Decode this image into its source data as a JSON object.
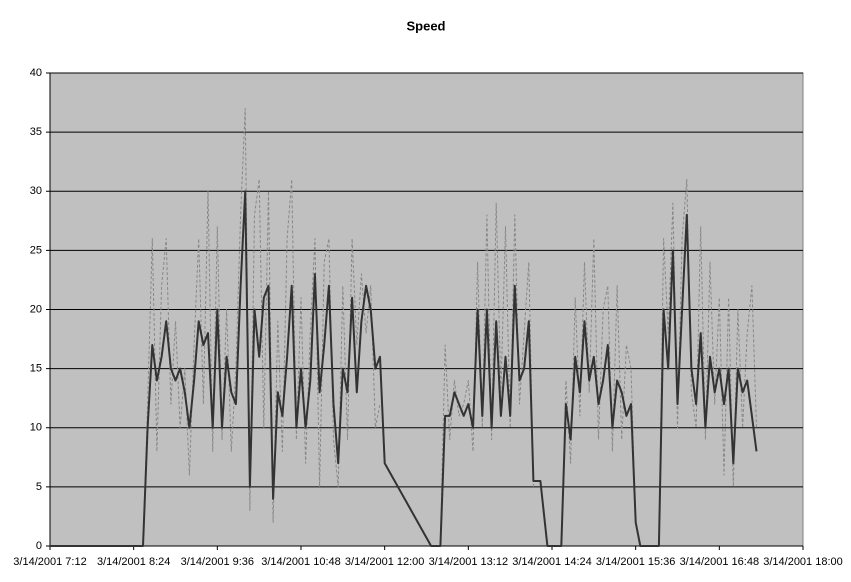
{
  "chart_data": {
    "type": "line",
    "title": "Speed",
    "x": [
      "3/14/2001 7:12",
      "3/14/2001 8:00",
      "3/14/2001 8:32",
      "3/14/2001 8:36",
      "3/14/2001 8:40",
      "3/14/2001 8:44",
      "3/14/2001 8:48",
      "3/14/2001 8:52",
      "3/14/2001 8:56",
      "3/14/2001 9:00",
      "3/14/2001 9:04",
      "3/14/2001 9:08",
      "3/14/2001 9:12",
      "3/14/2001 9:16",
      "3/14/2001 9:20",
      "3/14/2001 9:24",
      "3/14/2001 9:28",
      "3/14/2001 9:32",
      "3/14/2001 9:36",
      "3/14/2001 9:40",
      "3/14/2001 9:44",
      "3/14/2001 9:48",
      "3/14/2001 9:52",
      "3/14/2001 9:56",
      "3/14/2001 10:00",
      "3/14/2001 10:04",
      "3/14/2001 10:08",
      "3/14/2001 10:12",
      "3/14/2001 10:16",
      "3/14/2001 10:20",
      "3/14/2001 10:24",
      "3/14/2001 10:28",
      "3/14/2001 10:32",
      "3/14/2001 10:36",
      "3/14/2001 10:40",
      "3/14/2001 10:44",
      "3/14/2001 10:48",
      "3/14/2001 10:52",
      "3/14/2001 10:56",
      "3/14/2001 11:00",
      "3/14/2001 11:04",
      "3/14/2001 11:08",
      "3/14/2001 11:12",
      "3/14/2001 11:16",
      "3/14/2001 11:20",
      "3/14/2001 11:24",
      "3/14/2001 11:28",
      "3/14/2001 11:32",
      "3/14/2001 11:36",
      "3/14/2001 11:40",
      "3/14/2001 11:44",
      "3/14/2001 11:48",
      "3/14/2001 11:52",
      "3/14/2001 11:56",
      "3/14/2001 12:00",
      "3/14/2001 12:40",
      "3/14/2001 12:48",
      "3/14/2001 12:52",
      "3/14/2001 12:56",
      "3/14/2001 13:00",
      "3/14/2001 13:04",
      "3/14/2001 13:08",
      "3/14/2001 13:12",
      "3/14/2001 13:16",
      "3/14/2001 13:20",
      "3/14/2001 13:24",
      "3/14/2001 13:28",
      "3/14/2001 13:32",
      "3/14/2001 13:36",
      "3/14/2001 13:40",
      "3/14/2001 13:44",
      "3/14/2001 13:48",
      "3/14/2001 13:52",
      "3/14/2001 13:56",
      "3/14/2001 14:00",
      "3/14/2001 14:04",
      "3/14/2001 14:08",
      "3/14/2001 14:14",
      "3/14/2001 14:20",
      "3/14/2001 14:32",
      "3/14/2001 14:36",
      "3/14/2001 14:40",
      "3/14/2001 14:44",
      "3/14/2001 14:48",
      "3/14/2001 14:52",
      "3/14/2001 14:56",
      "3/14/2001 15:00",
      "3/14/2001 15:04",
      "3/14/2001 15:08",
      "3/14/2001 15:12",
      "3/14/2001 15:16",
      "3/14/2001 15:20",
      "3/14/2001 15:24",
      "3/14/2001 15:28",
      "3/14/2001 15:32",
      "3/14/2001 15:36",
      "3/14/2001 15:40",
      "3/14/2001 15:56",
      "3/14/2001 16:00",
      "3/14/2001 16:04",
      "3/14/2001 16:08",
      "3/14/2001 16:12",
      "3/14/2001 16:16",
      "3/14/2001 16:20",
      "3/14/2001 16:24",
      "3/14/2001 16:28",
      "3/14/2001 16:32",
      "3/14/2001 16:36",
      "3/14/2001 16:40",
      "3/14/2001 16:44",
      "3/14/2001 16:48",
      "3/14/2001 16:52",
      "3/14/2001 16:56",
      "3/14/2001 17:00",
      "3/14/2001 17:04",
      "3/14/2001 17:08",
      "3/14/2001 17:12",
      "3/14/2001 17:16",
      "3/14/2001 17:20"
    ],
    "series": [
      {
        "color": "#888888",
        "dashed": true,
        "values": [
          0,
          0,
          0,
          12,
          26,
          8,
          22,
          26,
          12,
          19,
          10,
          15,
          6,
          17,
          26,
          12,
          30,
          8,
          27,
          9,
          20,
          8,
          15,
          28,
          37,
          3,
          28,
          31,
          10,
          30,
          2,
          19,
          8,
          26,
          31,
          9,
          21,
          7,
          18,
          26,
          5,
          24,
          26,
          9,
          5,
          22,
          9,
          26,
          17,
          23,
          18,
          22,
          10,
          12,
          null,
          null,
          0,
          17,
          9,
          14,
          11,
          12,
          14,
          8,
          24,
          10,
          28,
          9,
          29,
          13,
          27,
          10,
          28,
          12,
          18,
          24,
          5,
          null,
          0,
          0,
          14,
          7,
          21,
          11,
          24,
          13,
          26,
          9,
          20,
          22,
          8,
          22,
          9,
          17,
          15,
          2,
          0,
          0,
          26,
          18,
          29,
          10,
          26,
          31,
          13,
          10,
          27,
          9,
          24,
          12,
          21,
          6,
          21,
          5,
          20,
          10,
          18,
          22,
          10
        ]
      },
      {
        "color": "#333333",
        "dashed": false,
        "values": [
          0,
          0,
          0,
          10,
          17,
          14,
          16,
          19,
          15,
          14,
          15,
          13,
          10,
          14,
          19,
          17,
          18,
          10,
          20,
          10,
          16,
          13,
          12,
          22,
          30,
          5,
          20,
          16,
          21,
          22,
          4,
          13,
          11,
          16,
          22,
          10,
          15,
          10,
          14,
          23,
          13,
          17,
          22,
          12,
          7,
          15,
          13,
          21,
          13,
          19,
          22,
          20,
          15,
          16,
          7,
          0,
          0,
          11,
          11,
          13,
          12,
          11,
          12,
          10,
          20,
          11,
          20,
          10,
          19,
          11,
          16,
          11,
          22,
          14,
          15,
          19,
          5.5,
          5.5,
          0,
          0,
          12,
          9,
          16,
          13,
          19,
          14,
          16,
          12,
          14,
          17,
          10,
          14,
          13,
          11,
          12,
          2,
          0,
          0,
          20,
          15,
          25,
          12,
          20,
          28,
          15,
          12,
          18,
          10,
          16,
          13,
          15,
          12,
          15,
          7,
          15,
          13,
          14,
          11,
          8
        ]
      }
    ],
    "xlim": [
      "3/14/2001 7:12",
      "3/14/2001 18:00"
    ],
    "xticks": [
      "3/14/2001 7:12",
      "3/14/2001 8:24",
      "3/14/2001 9:36",
      "3/14/2001 10:48",
      "3/14/2001 12:00",
      "3/14/2001 13:12",
      "3/14/2001 14:24",
      "3/14/2001 15:36",
      "3/14/2001 16:48",
      "3/14/2001 18:00"
    ],
    "ylim": [
      0,
      40
    ],
    "yticks": [
      0,
      5,
      10,
      15,
      20,
      25,
      30,
      35,
      40
    ],
    "grid": true,
    "plot_background": "#c0c0c0"
  }
}
